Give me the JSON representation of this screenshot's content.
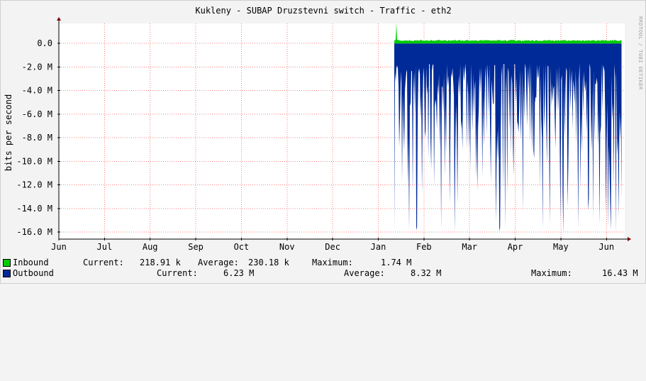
{
  "title": "Kukleny - SUBAP Druzstevni switch - Traffic - eth2",
  "ylabel": "bits per second",
  "watermark": "RRDTOOL / TOBI OETIKER",
  "colors": {
    "background": "#f3f3f3",
    "plot": "#ffffff",
    "grid": "#ff8080",
    "inbound": "#00cc00",
    "outbound": "#002a97"
  },
  "chart_data": {
    "type": "area",
    "y_ticks": [
      "0.0",
      "-2.0 M",
      "-4.0 M",
      "-6.0 M",
      "-8.0 M",
      "-10.0 M",
      "-12.0 M",
      "-14.0 M",
      "-16.0 M"
    ],
    "x_ticks": [
      "Jun",
      "Jul",
      "Aug",
      "Sep",
      "Oct",
      "Nov",
      "Dec",
      "Jan",
      "Feb",
      "Mar",
      "Apr",
      "May",
      "Jun"
    ],
    "ylim": [
      -16600000,
      1700000
    ],
    "xlim_months": [
      0,
      12.4
    ],
    "data_start_month": 7.35,
    "grid": true,
    "series": [
      {
        "name": "Inbound",
        "color": "#00cc00",
        "direction": "positive",
        "baseline_bps": 230000,
        "spike_bps": 1740000
      },
      {
        "name": "Outbound",
        "color": "#002a97",
        "direction": "negative",
        "average_bps": 8320000,
        "max_bps": 16430000,
        "min_bps": 1700000
      }
    ]
  },
  "legend": {
    "inbound": {
      "name": "Inbound",
      "current_label": "Current:",
      "current": "218.91 k",
      "average_label": "Average:",
      "average": "230.18 k",
      "maximum_label": "Maximum:",
      "maximum": "1.74 M"
    },
    "outbound": {
      "name": "Outbound",
      "current_label": "Current:",
      "current": "6.23 M",
      "average_label": "Average:",
      "average": "8.32 M",
      "maximum_label": "Maximum:",
      "maximum": "16.43 M"
    }
  }
}
